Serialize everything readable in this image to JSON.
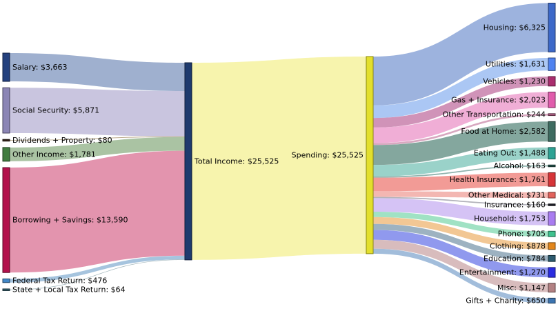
{
  "chart_data": {
    "type": "sankey",
    "title": "",
    "unit_prefix": "$",
    "total": 25525,
    "legend_position": "none",
    "grid": false,
    "columns": [
      {
        "name": "income_sources",
        "nodes": [
          {
            "id": "salary",
            "label": "Salary: $3,663",
            "value": 3663,
            "fill": "#24417e",
            "border": "#122040"
          },
          {
            "id": "social_security",
            "label": "Social Security: $5,871",
            "value": 5871,
            "fill": "#8b85b5",
            "border": "#46425b"
          },
          {
            "id": "dividends",
            "label": "Dividends + Property: $80",
            "value": 80,
            "fill": "#33241a",
            "border": "#19110c"
          },
          {
            "id": "other_income",
            "label": "Other Income: $1,781",
            "value": 1781,
            "fill": "#417c40",
            "border": "#203e20"
          },
          {
            "id": "borrowing",
            "label": "Borrowing + Savings: $13,590",
            "value": 13590,
            "fill": "#b2124c",
            "border": "#580a26"
          },
          {
            "id": "federal_tax",
            "label": "Federal Tax Return: $476",
            "value": 476,
            "fill": "#4288c8",
            "border": "#214464"
          },
          {
            "id": "state_tax",
            "label": "State + Local Tax Return: $64",
            "value": 64,
            "fill": "#33616e",
            "border": "#193037"
          }
        ]
      },
      {
        "name": "total_income",
        "nodes": [
          {
            "id": "total_income",
            "label": "Total Income: $25,525",
            "value": 25525,
            "fill": "#1e3a6e",
            "border": "#0e1c38"
          }
        ]
      },
      {
        "name": "spending",
        "nodes": [
          {
            "id": "spending",
            "label": "Spending: $25,525",
            "value": 25525,
            "fill": "#e3df2c",
            "border": "#8a870e"
          }
        ]
      },
      {
        "name": "spending_categories",
        "nodes": [
          {
            "id": "housing",
            "label": "Housing: $6,325",
            "value": 6325,
            "fill": "#3c68c8",
            "border": "#1e3464"
          },
          {
            "id": "utilities",
            "label": "Utilities: $1,631",
            "value": 1631,
            "fill": "#4f82f0",
            "border": "#274178"
          },
          {
            "id": "vehicles",
            "label": "Vehicles: $1,230",
            "value": 1230,
            "fill": "#aa2d6e",
            "border": "#551636"
          },
          {
            "id": "gas_insurance",
            "label": "Gas + Insurance: $2,023",
            "value": 2023,
            "fill": "#e05cac",
            "border": "#702e56"
          },
          {
            "id": "other_transport",
            "label": "Other Transportation: $244",
            "value": 244,
            "fill": "#b05c84",
            "border": "#582e42"
          },
          {
            "id": "food_home",
            "label": "Food at Home: $2,582",
            "value": 2582,
            "fill": "#3d6b60",
            "border": "#1e3530"
          },
          {
            "id": "eating_out",
            "label": "Eating Out: $1,488",
            "value": 1488,
            "fill": "#2da294",
            "border": "#16514a"
          },
          {
            "id": "alcohol",
            "label": "Alcohol: $163",
            "value": 163,
            "fill": "#24544c",
            "border": "#122a26"
          },
          {
            "id": "health_insurance",
            "label": "Health Insurance: $1,761",
            "value": 1761,
            "fill": "#d63438",
            "border": "#6b1a1c"
          },
          {
            "id": "other_medical",
            "label": "Other Medical: $731",
            "value": 731,
            "fill": "#e2625c",
            "border": "#71312e"
          },
          {
            "id": "insurance",
            "label": "Insurance: $160",
            "value": 160,
            "fill": "#22242c",
            "border": "#111216"
          },
          {
            "id": "household",
            "label": "Household: $1,753",
            "value": 1753,
            "fill": "#a97cf0",
            "border": "#543e78"
          },
          {
            "id": "phone",
            "label": "Phone: $705",
            "value": 705,
            "fill": "#3ec28e",
            "border": "#1f6147"
          },
          {
            "id": "clothing",
            "label": "Clothing: $878",
            "value": 878,
            "fill": "#e2861c",
            "border": "#71430e"
          },
          {
            "id": "education",
            "label": "Education: $784",
            "value": 784,
            "fill": "#2c5a6e",
            "border": "#162d37"
          },
          {
            "id": "entertainment",
            "label": "Entertainment: $1,270",
            "value": 1270,
            "fill": "#2a2ce0",
            "border": "#151670"
          },
          {
            "id": "misc",
            "label": "Misc: $1,147",
            "value": 1147,
            "fill": "#b28183",
            "border": "#594042"
          },
          {
            "id": "gifts_charity",
            "label": "Gifts + Charity: $650",
            "value": 650,
            "fill": "#3c74b0",
            "border": "#1e3a58"
          }
        ]
      }
    ],
    "flows": [
      {
        "from": "salary",
        "to": "total_income",
        "value": 3663,
        "color": "#9fb0cf"
      },
      {
        "from": "social_security",
        "to": "total_income",
        "value": 5871,
        "color": "#c9c5df"
      },
      {
        "from": "dividends",
        "to": "total_income",
        "value": 80,
        "color": "#baa88a"
      },
      {
        "from": "other_income",
        "to": "total_income",
        "value": 1781,
        "color": "#aac3a3"
      },
      {
        "from": "borrowing",
        "to": "total_income",
        "value": 13590,
        "color": "#e394ae"
      },
      {
        "from": "federal_tax",
        "to": "total_income",
        "value": 476,
        "color": "#a6c4de"
      },
      {
        "from": "state_tax",
        "to": "total_income",
        "value": 64,
        "color": "#9fb4ba"
      },
      {
        "from": "total_income",
        "to": "spending",
        "value": 25525,
        "color": "#f7f4ad"
      },
      {
        "from": "spending",
        "to": "housing",
        "value": 6325,
        "color": "#9db3de"
      },
      {
        "from": "spending",
        "to": "utilities",
        "value": 1631,
        "color": "#abc7f4"
      },
      {
        "from": "spending",
        "to": "vehicles",
        "value": 1230,
        "color": "#d093b8"
      },
      {
        "from": "spending",
        "to": "gas_insurance",
        "value": 2023,
        "color": "#f0aed6"
      },
      {
        "from": "spending",
        "to": "other_transport",
        "value": 244,
        "color": "#d8a8c0"
      },
      {
        "from": "spending",
        "to": "food_home",
        "value": 2582,
        "color": "#84a79e"
      },
      {
        "from": "spending",
        "to": "eating_out",
        "value": 1488,
        "color": "#9ad2c9"
      },
      {
        "from": "spending",
        "to": "alcohol",
        "value": 163,
        "color": "#90b4ae"
      },
      {
        "from": "spending",
        "to": "health_insurance",
        "value": 1761,
        "color": "#f29b96"
      },
      {
        "from": "spending",
        "to": "other_medical",
        "value": 731,
        "color": "#f3b7b2"
      },
      {
        "from": "spending",
        "to": "insurance",
        "value": 160,
        "color": "#b2b2ba"
      },
      {
        "from": "spending",
        "to": "household",
        "value": 1753,
        "color": "#d5c3f5"
      },
      {
        "from": "spending",
        "to": "phone",
        "value": 705,
        "color": "#a0e2c4"
      },
      {
        "from": "spending",
        "to": "clothing",
        "value": 878,
        "color": "#f2c794"
      },
      {
        "from": "spending",
        "to": "education",
        "value": 784,
        "color": "#9db2c1"
      },
      {
        "from": "spending",
        "to": "entertainment",
        "value": 1270,
        "color": "#9099ee"
      },
      {
        "from": "spending",
        "to": "misc",
        "value": 1147,
        "color": "#d8bcbd"
      },
      {
        "from": "spending",
        "to": "gifts_charity",
        "value": 650,
        "color": "#a2bddb"
      }
    ],
    "background_color": "#ffffff",
    "label_color": "#000000"
  }
}
